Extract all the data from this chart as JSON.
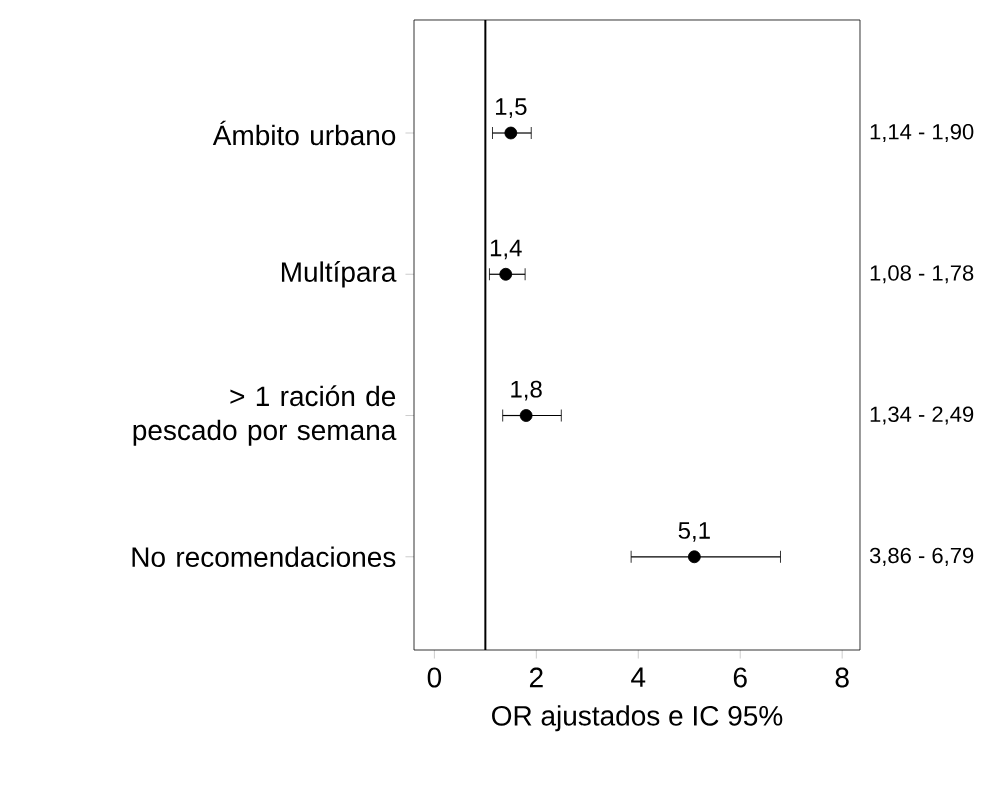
{
  "chart_data": {
    "type": "scatter",
    "orientation": "horizontal",
    "xlabel": "OR ajustados e IC 95%",
    "categories": [
      "Ámbito urbano",
      "Multípara",
      "> 1 ración de pescado por semana",
      "No recomendaciones"
    ],
    "values": [
      1.5,
      1.4,
      1.8,
      5.1
    ],
    "errors": [
      [
        1.14,
        1.9
      ],
      [
        1.08,
        1.78
      ],
      [
        1.34,
        2.49
      ],
      [
        3.86,
        6.79
      ]
    ],
    "value_labels": [
      "1,5",
      "1,4",
      "1,8",
      "5,1"
    ],
    "color": "#000000",
    "marker": "circle",
    "xlim": [
      -0.4,
      8.35
    ],
    "xticks": [
      0,
      2,
      4,
      6,
      8
    ],
    "ref_lines": [
      {
        "axis": "x",
        "value": 1,
        "color": "#000000"
      }
    ],
    "annotations": [
      "1,14 - 1,90",
      "1,08 - 1,78",
      "1,34 - 2,49",
      "3,86 - 6,79"
    ]
  }
}
